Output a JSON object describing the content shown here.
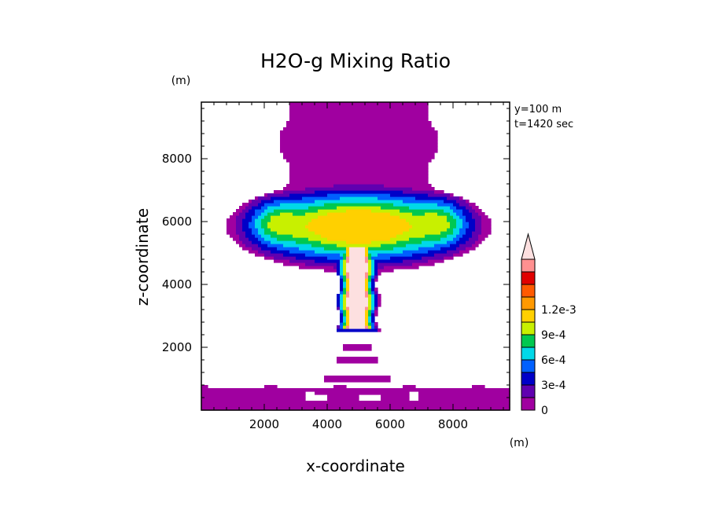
{
  "chart_data": {
    "type": "heatmap",
    "title": "H2O-g Mixing Ratio",
    "xlabel": "x-coordinate",
    "ylabel": "z-coordinate",
    "x_unit": "(m)",
    "y_unit": "(m)",
    "xlim": [
      0,
      9800
    ],
    "ylim": [
      0,
      9800
    ],
    "xticks": [
      2000,
      4000,
      6000,
      8000
    ],
    "yticks": [
      2000,
      4000,
      6000,
      8000
    ],
    "xtick_labels": [
      "2000",
      "4000",
      "6000",
      "8000"
    ],
    "ytick_labels": [
      "2000",
      "4000",
      "6000",
      "8000"
    ],
    "annotations": [
      "y=100 m",
      "t=1420 sec"
    ],
    "colorbar": {
      "levels": [
        0,
        0.00015,
        0.0003,
        0.00045,
        0.0006,
        0.00075,
        0.0009,
        0.00105,
        0.0012
      ],
      "colors": [
        "#a000a0",
        "#6000b0",
        "#0000c8",
        "#0060ff",
        "#00d8e8",
        "#00c850",
        "#c8f000",
        "#ffd000",
        "#ff9900",
        "#ff5a00",
        "#e00000",
        "#ff9090",
        "#fde0e0"
      ],
      "labels": [
        "0",
        "3e-4",
        "6e-4",
        "9e-4",
        "1.2e-3"
      ],
      "label_values": [
        0,
        0.0003,
        0.0006,
        0.0009,
        0.0012
      ]
    },
    "features": [
      {
        "name": "upper moist column",
        "x_range": [
          2500,
          7400
        ],
        "z_range": [
          5500,
          9800
        ],
        "value": 0.0001
      },
      {
        "name": "cap",
        "center": [
          5000,
          5800
        ],
        "half_width": 4200,
        "half_height": 1400,
        "peak_value": 0.00095
      },
      {
        "name": "stem",
        "x_range": [
          4200,
          5700
        ],
        "z_range": [
          2400,
          5000
        ],
        "peak_value": 0.0013
      },
      {
        "name": "dry gap blobs",
        "x_center": 4900,
        "z_values": [
          600,
          1000,
          1600,
          2000
        ]
      },
      {
        "name": "surface layer",
        "z_range": [
          0,
          800
        ],
        "value": 0.0001
      }
    ]
  }
}
